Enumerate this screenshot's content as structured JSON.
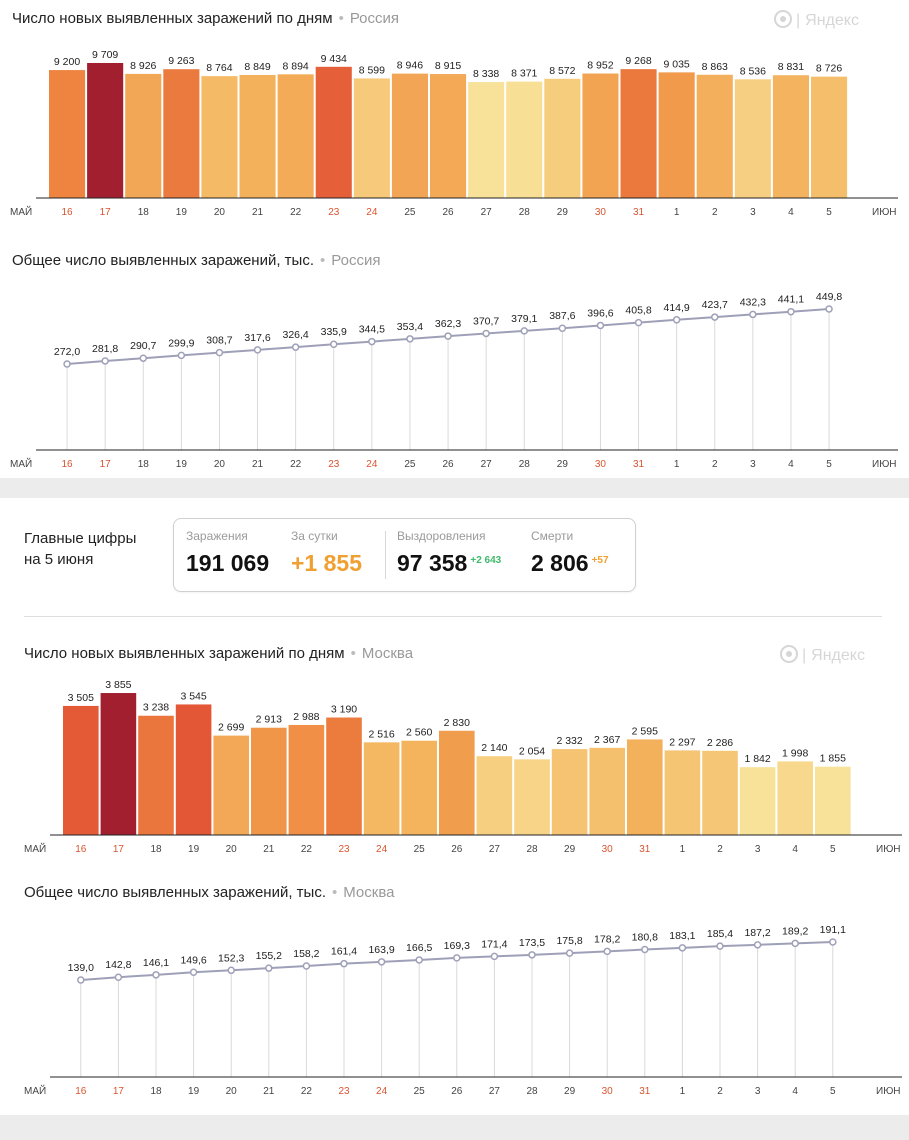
{
  "days": [
    "16",
    "17",
    "18",
    "19",
    "20",
    "21",
    "22",
    "23",
    "24",
    "25",
    "26",
    "27",
    "28",
    "29",
    "30",
    "31",
    "1",
    "2",
    "3",
    "4",
    "5"
  ],
  "weekend_indices": [
    0,
    1,
    7,
    8,
    14,
    15
  ],
  "month_start": "МАЙ",
  "month_end": "ИЮН",
  "logo_text": "Яндекс",
  "colors": {
    "weekend_label": "#d9542f",
    "weekday_label": "#444444",
    "line": "#9ea0b8",
    "grid": "#d9d9d9"
  },
  "russia": {
    "region": "Россия",
    "daily": {
      "title": "Число новых выявленных заражений по дням",
      "labels": [
        "9 200",
        "9 709",
        "8 926",
        "9 263",
        "8 764",
        "8 849",
        "8 894",
        "9 434",
        "8 599",
        "8 946",
        "8 915",
        "8 338",
        "8 371",
        "8 572",
        "8 952",
        "9 268",
        "9 035",
        "8 863",
        "8 536",
        "8 831",
        "8 726"
      ]
    },
    "total": {
      "title": "Общее число выявленных заражений, тыс.",
      "labels": [
        "272,0",
        "281,8",
        "290,7",
        "299,9",
        "308,7",
        "317,6",
        "326,4",
        "335,9",
        "344,5",
        "353,4",
        "362,3",
        "370,7",
        "379,1",
        "387,6",
        "396,6",
        "405,8",
        "414,9",
        "423,7",
        "432,3",
        "441,1",
        "449,8"
      ]
    }
  },
  "summary": {
    "heading_line1": "Главные цифры",
    "heading_line2": "на 5 июня",
    "infections_label": "Заражения",
    "infections_value": "191 069",
    "per_day_label": "За сутки",
    "per_day_value": "+1 855",
    "recovered_label": "Выздоровления",
    "recovered_value": "97 358",
    "recovered_delta": "+2 643",
    "deaths_label": "Смерти",
    "deaths_value": "2 806",
    "deaths_delta": "+57"
  },
  "moscow": {
    "region": "Москва",
    "daily": {
      "title": "Число новых выявленных заражений по дням",
      "labels": [
        "3 505",
        "3 855",
        "3 238",
        "3 545",
        "2 699",
        "2 913",
        "2 988",
        "3 190",
        "2 516",
        "2 560",
        "2 830",
        "2 140",
        "2 054",
        "2 332",
        "2 367",
        "2 595",
        "2 297",
        "2 286",
        "1 842",
        "1 998",
        "1 855"
      ]
    },
    "total": {
      "title": "Общее число выявленных заражений, тыс.",
      "labels": [
        "139,0",
        "142,8",
        "146,1",
        "149,6",
        "152,3",
        "155,2",
        "158,2",
        "161,4",
        "163,9",
        "166,5",
        "169,3",
        "171,4",
        "173,5",
        "175,8",
        "178,2",
        "180,8",
        "183,1",
        "185,4",
        "187,2",
        "189,2",
        "191,1"
      ]
    }
  },
  "chart_data": [
    {
      "type": "bar",
      "title": "Число новых выявленных заражений по дням",
      "subtitle": "Россия",
      "categories": [
        "16",
        "17",
        "18",
        "19",
        "20",
        "21",
        "22",
        "23",
        "24",
        "25",
        "26",
        "27",
        "28",
        "29",
        "30",
        "31",
        "1",
        "2",
        "3",
        "4",
        "5"
      ],
      "values": [
        9200,
        9709,
        8926,
        9263,
        8764,
        8849,
        8894,
        9434,
        8599,
        8946,
        8915,
        8338,
        8371,
        8572,
        8952,
        9268,
        9035,
        8863,
        8536,
        8831,
        8726
      ],
      "ylim": [
        0,
        10500
      ]
    },
    {
      "type": "line",
      "title": "Общее число выявленных заражений, тыс.",
      "subtitle": "Россия",
      "categories": [
        "16",
        "17",
        "18",
        "19",
        "20",
        "21",
        "22",
        "23",
        "24",
        "25",
        "26",
        "27",
        "28",
        "29",
        "30",
        "31",
        "1",
        "2",
        "3",
        "4",
        "5"
      ],
      "values": [
        272.0,
        281.8,
        290.7,
        299.9,
        308.7,
        317.6,
        326.4,
        335.9,
        344.5,
        353.4,
        362.3,
        370.7,
        379.1,
        387.6,
        396.6,
        405.8,
        414.9,
        423.7,
        432.3,
        441.1,
        449.8
      ]
    },
    {
      "type": "bar",
      "title": "Число новых выявленных заражений по дням",
      "subtitle": "Москва",
      "categories": [
        "16",
        "17",
        "18",
        "19",
        "20",
        "21",
        "22",
        "23",
        "24",
        "25",
        "26",
        "27",
        "28",
        "29",
        "30",
        "31",
        "1",
        "2",
        "3",
        "4",
        "5"
      ],
      "values": [
        3505,
        3855,
        3238,
        3545,
        2699,
        2913,
        2988,
        3190,
        2516,
        2560,
        2830,
        2140,
        2054,
        2332,
        2367,
        2595,
        2297,
        2286,
        1842,
        1998,
        1855
      ],
      "ylim": [
        0,
        4100
      ]
    },
    {
      "type": "line",
      "title": "Общее число выявленных заражений, тыс.",
      "subtitle": "Москва",
      "categories": [
        "16",
        "17",
        "18",
        "19",
        "20",
        "21",
        "22",
        "23",
        "24",
        "25",
        "26",
        "27",
        "28",
        "29",
        "30",
        "31",
        "1",
        "2",
        "3",
        "4",
        "5"
      ],
      "values": [
        139.0,
        142.8,
        146.1,
        149.6,
        152.3,
        155.2,
        158.2,
        161.4,
        163.9,
        166.5,
        169.3,
        171.4,
        173.5,
        175.8,
        178.2,
        180.8,
        183.1,
        185.4,
        187.2,
        189.2,
        191.1
      ]
    }
  ]
}
